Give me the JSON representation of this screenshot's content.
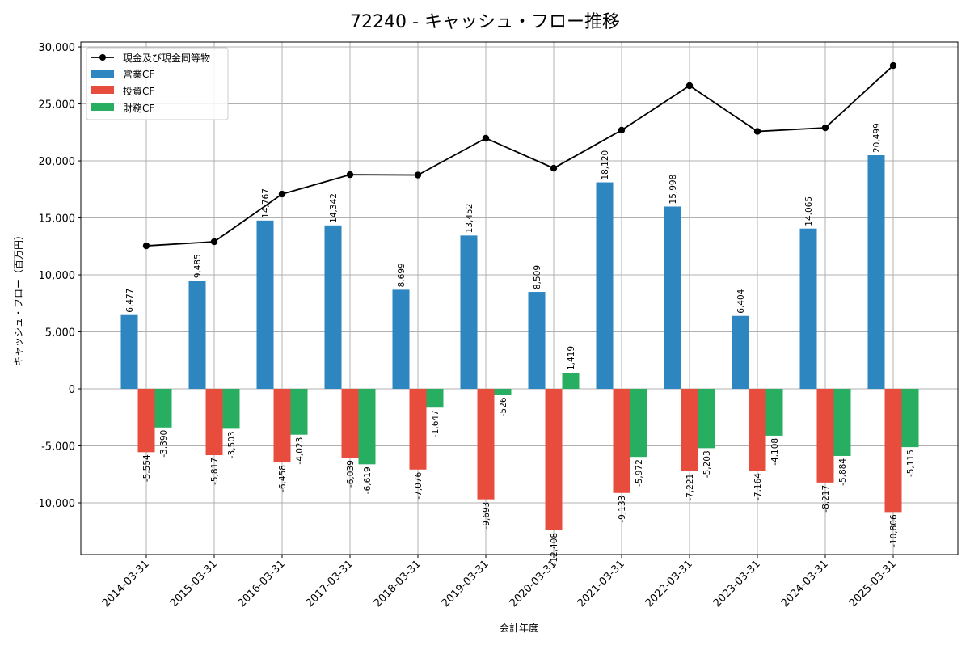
{
  "chart_data": {
    "type": "bar",
    "title": "72240 - キャッシュ・フロー推移",
    "xlabel": "会計年度",
    "ylabel": "キャッシュ・フロー（百万円）",
    "ylim": [
      -14540,
      30430
    ],
    "yticks": [
      -10000,
      -5000,
      0,
      5000,
      10000,
      15000,
      20000,
      25000,
      30000
    ],
    "ytick_labels": [
      "-10,000",
      "-5,000",
      "0",
      "5,000",
      "10,000",
      "15,000",
      "20,000",
      "25,000",
      "30,000"
    ],
    "grid": true,
    "legend_position": "top-left",
    "categories": [
      "2014-03-31",
      "2015-03-31",
      "2016-03-31",
      "2017-03-31",
      "2018-03-31",
      "2019-03-31",
      "2020-03-31",
      "2021-03-31",
      "2022-03-31",
      "2023-03-31",
      "2024-03-31",
      "2025-03-31"
    ],
    "series": [
      {
        "name": "営業CF",
        "type": "bar",
        "color": "#2e86c1",
        "values": [
          6477,
          9485,
          14767,
          14342,
          8699,
          13452,
          8509,
          18120,
          15998,
          6404,
          14065,
          20499
        ]
      },
      {
        "name": "投資CF",
        "type": "bar",
        "color": "#e74c3c",
        "values": [
          -5554,
          -5817,
          -6458,
          -6039,
          -7076,
          -9693,
          -12408,
          -9133,
          -7221,
          -7164,
          -8217,
          -10806
        ]
      },
      {
        "name": "財務CF",
        "type": "bar",
        "color": "#27ae60",
        "values": [
          -3390,
          -3503,
          -4023,
          -6619,
          -1647,
          -526,
          1419,
          -5972,
          -5203,
          -4108,
          -5884,
          -5115
        ]
      }
    ],
    "line_series": {
      "name": "現金及び現金同等物",
      "type": "line",
      "color": "#000000",
      "values": [
        12550,
        12910,
        17090,
        18790,
        18760,
        21990,
        19360,
        22700,
        26600,
        22590,
        22910,
        28370
      ]
    }
  }
}
